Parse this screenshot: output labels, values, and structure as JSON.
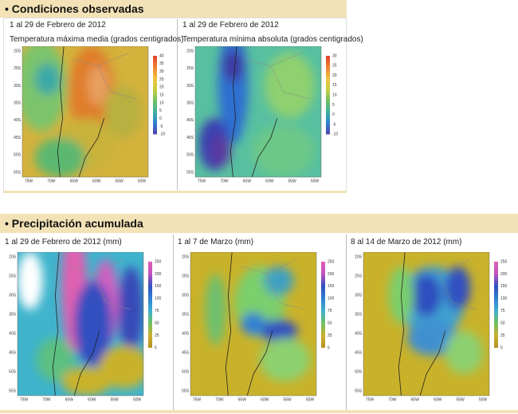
{
  "sections": [
    {
      "title": "Condiciones observadas",
      "panels": [
        {
          "date": "1 al 29 de Febrero de 2012",
          "subtitle": "Temperatura máxima media (grados centigrados)",
          "colorbar": [
            "40",
            "35",
            "30",
            "25",
            "20",
            "15",
            "10",
            "5",
            "0",
            "-5",
            "-10"
          ]
        },
        {
          "date": "1 al 29 de Febrero de 2012",
          "subtitle": "Temperatura mínima absoluta (grados centigrados)",
          "colorbar": [
            "30",
            "25",
            "20",
            "15",
            "10",
            "5",
            "0",
            "-5",
            "-10"
          ]
        }
      ]
    },
    {
      "title": "Precipitación acumulada",
      "panels": [
        {
          "date": "1 al 29 de Febrero de 2012 (mm)",
          "colorbar": [
            "250",
            "200",
            "150",
            "100",
            "75",
            "50",
            "25",
            "5"
          ]
        },
        {
          "date": "1 al 7 de Marzo (mm)",
          "colorbar": [
            "250",
            "200",
            "150",
            "100",
            "75",
            "50",
            "25",
            "5"
          ]
        },
        {
          "date": "8 al 14 de Marzo de 2012 (mm)",
          "colorbar": [
            "250",
            "200",
            "150",
            "100",
            "75",
            "50",
            "25",
            "5"
          ]
        }
      ]
    }
  ],
  "map_axes": {
    "lat": [
      "20S",
      "25S",
      "30S",
      "35S",
      "40S",
      "45S",
      "50S",
      "55S"
    ],
    "lon": [
      "75W",
      "70W",
      "65W",
      "60W",
      "55W",
      "50W"
    ]
  }
}
